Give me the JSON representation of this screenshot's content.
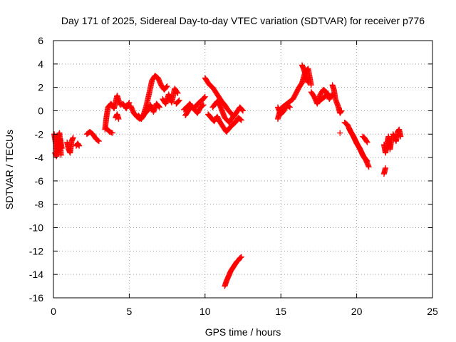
{
  "chart_data": {
    "type": "scatter",
    "title": "Day 171 of 2025, Sidereal Day-to-day VTEC variation (SDTVAR) for receiver p776",
    "xlabel": "GPS time / hours",
    "ylabel": "SDTVAR / TECUs",
    "xlim": [
      0,
      25
    ],
    "ylim": [
      -16,
      6
    ],
    "xticks": [
      0,
      5,
      10,
      15,
      20,
      25
    ],
    "yticks": [
      -16,
      -14,
      -12,
      -10,
      -8,
      -6,
      -4,
      -2,
      0,
      2,
      4,
      6
    ],
    "grid": true,
    "marker": "+",
    "series_color": "#ff0000",
    "segments": [
      {
        "x": [
          0.05,
          0.15,
          0.25,
          0.35,
          0.45,
          0.55
        ],
        "y": [
          -2.0,
          -2.8,
          -3.6,
          -3.0,
          -2.4,
          -3.2
        ]
      },
      {
        "x": [
          0.1,
          0.2,
          0.3,
          0.4,
          0.5
        ],
        "y": [
          -3.6,
          -3.9,
          -2.2,
          -1.9,
          -3.8
        ]
      },
      {
        "x": [
          0.9,
          1.0,
          1.1,
          1.2,
          1.3
        ],
        "y": [
          -2.7,
          -3.3,
          -3.6,
          -2.6,
          -2.3
        ]
      },
      {
        "x": [
          1.5,
          1.6,
          1.7
        ],
        "y": [
          -3.0,
          -2.8,
          -3.0
        ]
      },
      {
        "x": [
          2.2,
          2.4,
          2.6,
          2.8,
          3.0
        ],
        "y": [
          -2.0,
          -1.8,
          -2.0,
          -2.4,
          -2.6
        ]
      },
      {
        "x": [
          3.4,
          3.5,
          3.6,
          3.8,
          4.0,
          4.2,
          4.4,
          4.6,
          4.8,
          5.0
        ],
        "y": [
          -1.6,
          -0.5,
          0.3,
          0.6,
          0.2,
          1.3,
          0.5,
          0.6,
          0.2,
          0.7
        ]
      },
      {
        "x": [
          3.5,
          3.7,
          3.9
        ],
        "y": [
          -1.5,
          -1.8,
          -1.9
        ]
      },
      {
        "x": [
          4.1,
          4.2,
          4.3
        ],
        "y": [
          -0.6,
          -0.3,
          -0.7
        ]
      },
      {
        "x": [
          5.1,
          5.3,
          5.5,
          5.7,
          5.9,
          6.1,
          6.3,
          6.5,
          6.7,
          6.9,
          7.1,
          7.3,
          7.5
        ],
        "y": [
          0.4,
          -0.2,
          -0.5,
          -0.7,
          -0.5,
          0.3,
          1.4,
          2.6,
          3.0,
          2.8,
          2.2,
          1.8,
          2.1
        ]
      },
      {
        "x": [
          5.6,
          5.8,
          6.0,
          6.2,
          6.4,
          6.6,
          6.8,
          7.0
        ],
        "y": [
          -0.4,
          -0.7,
          -0.3,
          0.0,
          0.5,
          -0.1,
          0.6,
          0.3
        ]
      },
      {
        "x": [
          7.2,
          7.4,
          7.6,
          7.8,
          8.0,
          8.2
        ],
        "y": [
          1.0,
          0.6,
          1.4,
          0.7,
          1.9,
          1.5
        ]
      },
      {
        "x": [
          8.1,
          8.3
        ],
        "y": [
          0.6,
          0.9
        ]
      },
      {
        "x": [
          8.6,
          8.8,
          9.0,
          9.2,
          9.4,
          9.6,
          9.8,
          10.0
        ],
        "y": [
          0.1,
          0.3,
          0.6,
          0.2,
          0.4,
          0.7,
          0.9,
          1.2
        ]
      },
      {
        "x": [
          8.7,
          8.9,
          9.1,
          9.3,
          9.5,
          9.7,
          9.9
        ],
        "y": [
          -0.4,
          0.0,
          0.4,
          0.1,
          -0.2,
          0.3,
          0.5
        ]
      },
      {
        "x": [
          10.0,
          10.1,
          10.3,
          10.5,
          10.7,
          10.9,
          11.1,
          11.3,
          11.5,
          11.7,
          11.9,
          12.1,
          12.3,
          12.5
        ],
        "y": [
          2.8,
          2.6,
          2.2,
          2.0,
          1.6,
          1.2,
          0.8,
          0.5,
          0.1,
          -0.2,
          -0.5,
          -0.1,
          0.3,
          0.0
        ]
      },
      {
        "x": [
          10.2,
          10.4,
          10.6,
          10.8,
          11.0,
          11.2,
          11.4,
          11.6,
          11.8,
          12.0,
          12.2,
          12.4
        ],
        "y": [
          -0.3,
          -0.6,
          -0.9,
          -0.5,
          -1.0,
          -1.4,
          -1.8,
          -1.5,
          -1.2,
          -1.0,
          -0.6,
          -0.8
        ]
      },
      {
        "x": [
          10.5,
          10.8,
          11.0,
          11.3,
          11.6,
          12.0
        ],
        "y": [
          0.3,
          0.8,
          0.4,
          -0.6,
          -1.0,
          -0.2
        ]
      },
      {
        "x": [
          11.3,
          11.4,
          11.5,
          11.6,
          11.7,
          11.8,
          11.9,
          12.0,
          12.1,
          12.2,
          12.3,
          12.4
        ],
        "y": [
          -15.0,
          -14.6,
          -14.3,
          -14.0,
          -13.7,
          -13.5,
          -13.3,
          -13.1,
          -12.9,
          -12.8,
          -12.6,
          -12.5
        ]
      },
      {
        "x": [
          14.8,
          14.9,
          15.0,
          15.2,
          15.4,
          15.6,
          15.8,
          16.0,
          16.2,
          16.4,
          16.6,
          16.8,
          17.0
        ],
        "y": [
          -0.7,
          -0.2,
          0.2,
          0.4,
          0.6,
          0.8,
          1.0,
          1.5,
          2.0,
          2.4,
          3.3,
          3.6,
          2.2
        ]
      },
      {
        "x": [
          14.8,
          15.0,
          15.2,
          15.4,
          15.6
        ],
        "y": [
          0.3,
          -0.3,
          0.0,
          0.5,
          0.3
        ]
      },
      {
        "x": [
          16.4,
          16.5,
          16.6,
          16.7,
          16.8
        ],
        "y": [
          3.9,
          3.6,
          3.2,
          2.8,
          2.4
        ]
      },
      {
        "x": [
          17.0,
          17.2,
          17.4,
          17.6,
          17.8,
          18.0,
          18.2,
          18.4
        ],
        "y": [
          1.6,
          1.2,
          0.6,
          1.4,
          1.8,
          1.6,
          1.0,
          1.4
        ]
      },
      {
        "x": [
          17.5,
          17.7,
          17.9,
          18.1
        ],
        "y": [
          0.8,
          1.0,
          1.2,
          1.5
        ]
      },
      {
        "x": [
          18.4,
          18.5,
          18.6,
          18.8,
          18.9,
          19.0
        ],
        "y": [
          2.2,
          1.8,
          1.0,
          0.3,
          -0.2,
          0.0
        ]
      },
      {
        "x": [
          18.9
        ],
        "y": [
          -1.9
        ]
      },
      {
        "x": [
          19.2,
          19.4,
          19.6,
          19.8,
          20.0,
          20.2,
          20.4,
          20.6,
          20.8
        ],
        "y": [
          -1.0,
          -1.2,
          -1.8,
          -2.2,
          -2.8,
          -3.2,
          -3.8,
          -4.2,
          -4.8
        ]
      },
      {
        "x": [
          19.5,
          19.7,
          19.9,
          20.1,
          20.3,
          20.5,
          20.7
        ],
        "y": [
          -1.5,
          -2.0,
          -2.5,
          -3.0,
          -3.5,
          -4.0,
          -4.3
        ]
      },
      {
        "x": [
          20.4,
          20.5,
          20.6,
          20.7
        ],
        "y": [
          -2.2,
          -2.3,
          -2.5,
          -2.7
        ]
      },
      {
        "x": [
          21.8,
          21.9,
          22.0,
          22.1,
          22.2,
          22.3
        ],
        "y": [
          -2.9,
          -3.6,
          -2.8,
          -2.2,
          -3.3,
          -2.4
        ]
      },
      {
        "x": [
          21.8,
          21.9
        ],
        "y": [
          -5.4,
          -4.9
        ]
      },
      {
        "x": [
          22.4,
          22.5,
          22.6,
          22.7,
          22.8,
          22.9
        ],
        "y": [
          -2.0,
          -2.3,
          -2.6,
          -1.8,
          -1.6,
          -2.2
        ]
      }
    ]
  }
}
